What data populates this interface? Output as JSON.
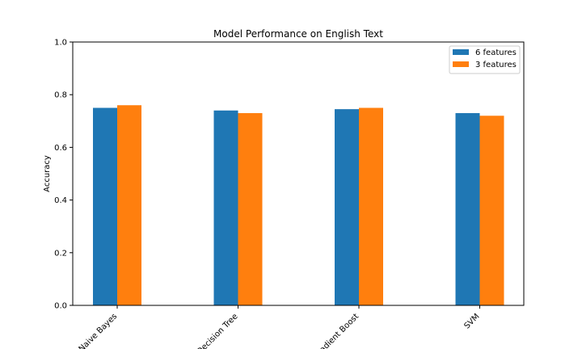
{
  "chart_data": {
    "type": "bar",
    "title": "Model Performance on English Text",
    "xlabel": "",
    "ylabel": "Accuracy",
    "ylim": [
      0,
      1.0
    ],
    "yticks": [
      "0.0",
      "0.2",
      "0.4",
      "0.6",
      "0.8",
      "1.0"
    ],
    "categories": [
      "Naive Bayes",
      "Decision Tree",
      "Gradient Boost",
      "SVM"
    ],
    "series": [
      {
        "name": "6 features",
        "color": "#1f77b4",
        "values": [
          0.75,
          0.74,
          0.745,
          0.73
        ]
      },
      {
        "name": "3 features",
        "color": "#ff7f0e",
        "values": [
          0.76,
          0.73,
          0.75,
          0.72
        ]
      }
    ],
    "legend": "top-right",
    "grid": false
  }
}
